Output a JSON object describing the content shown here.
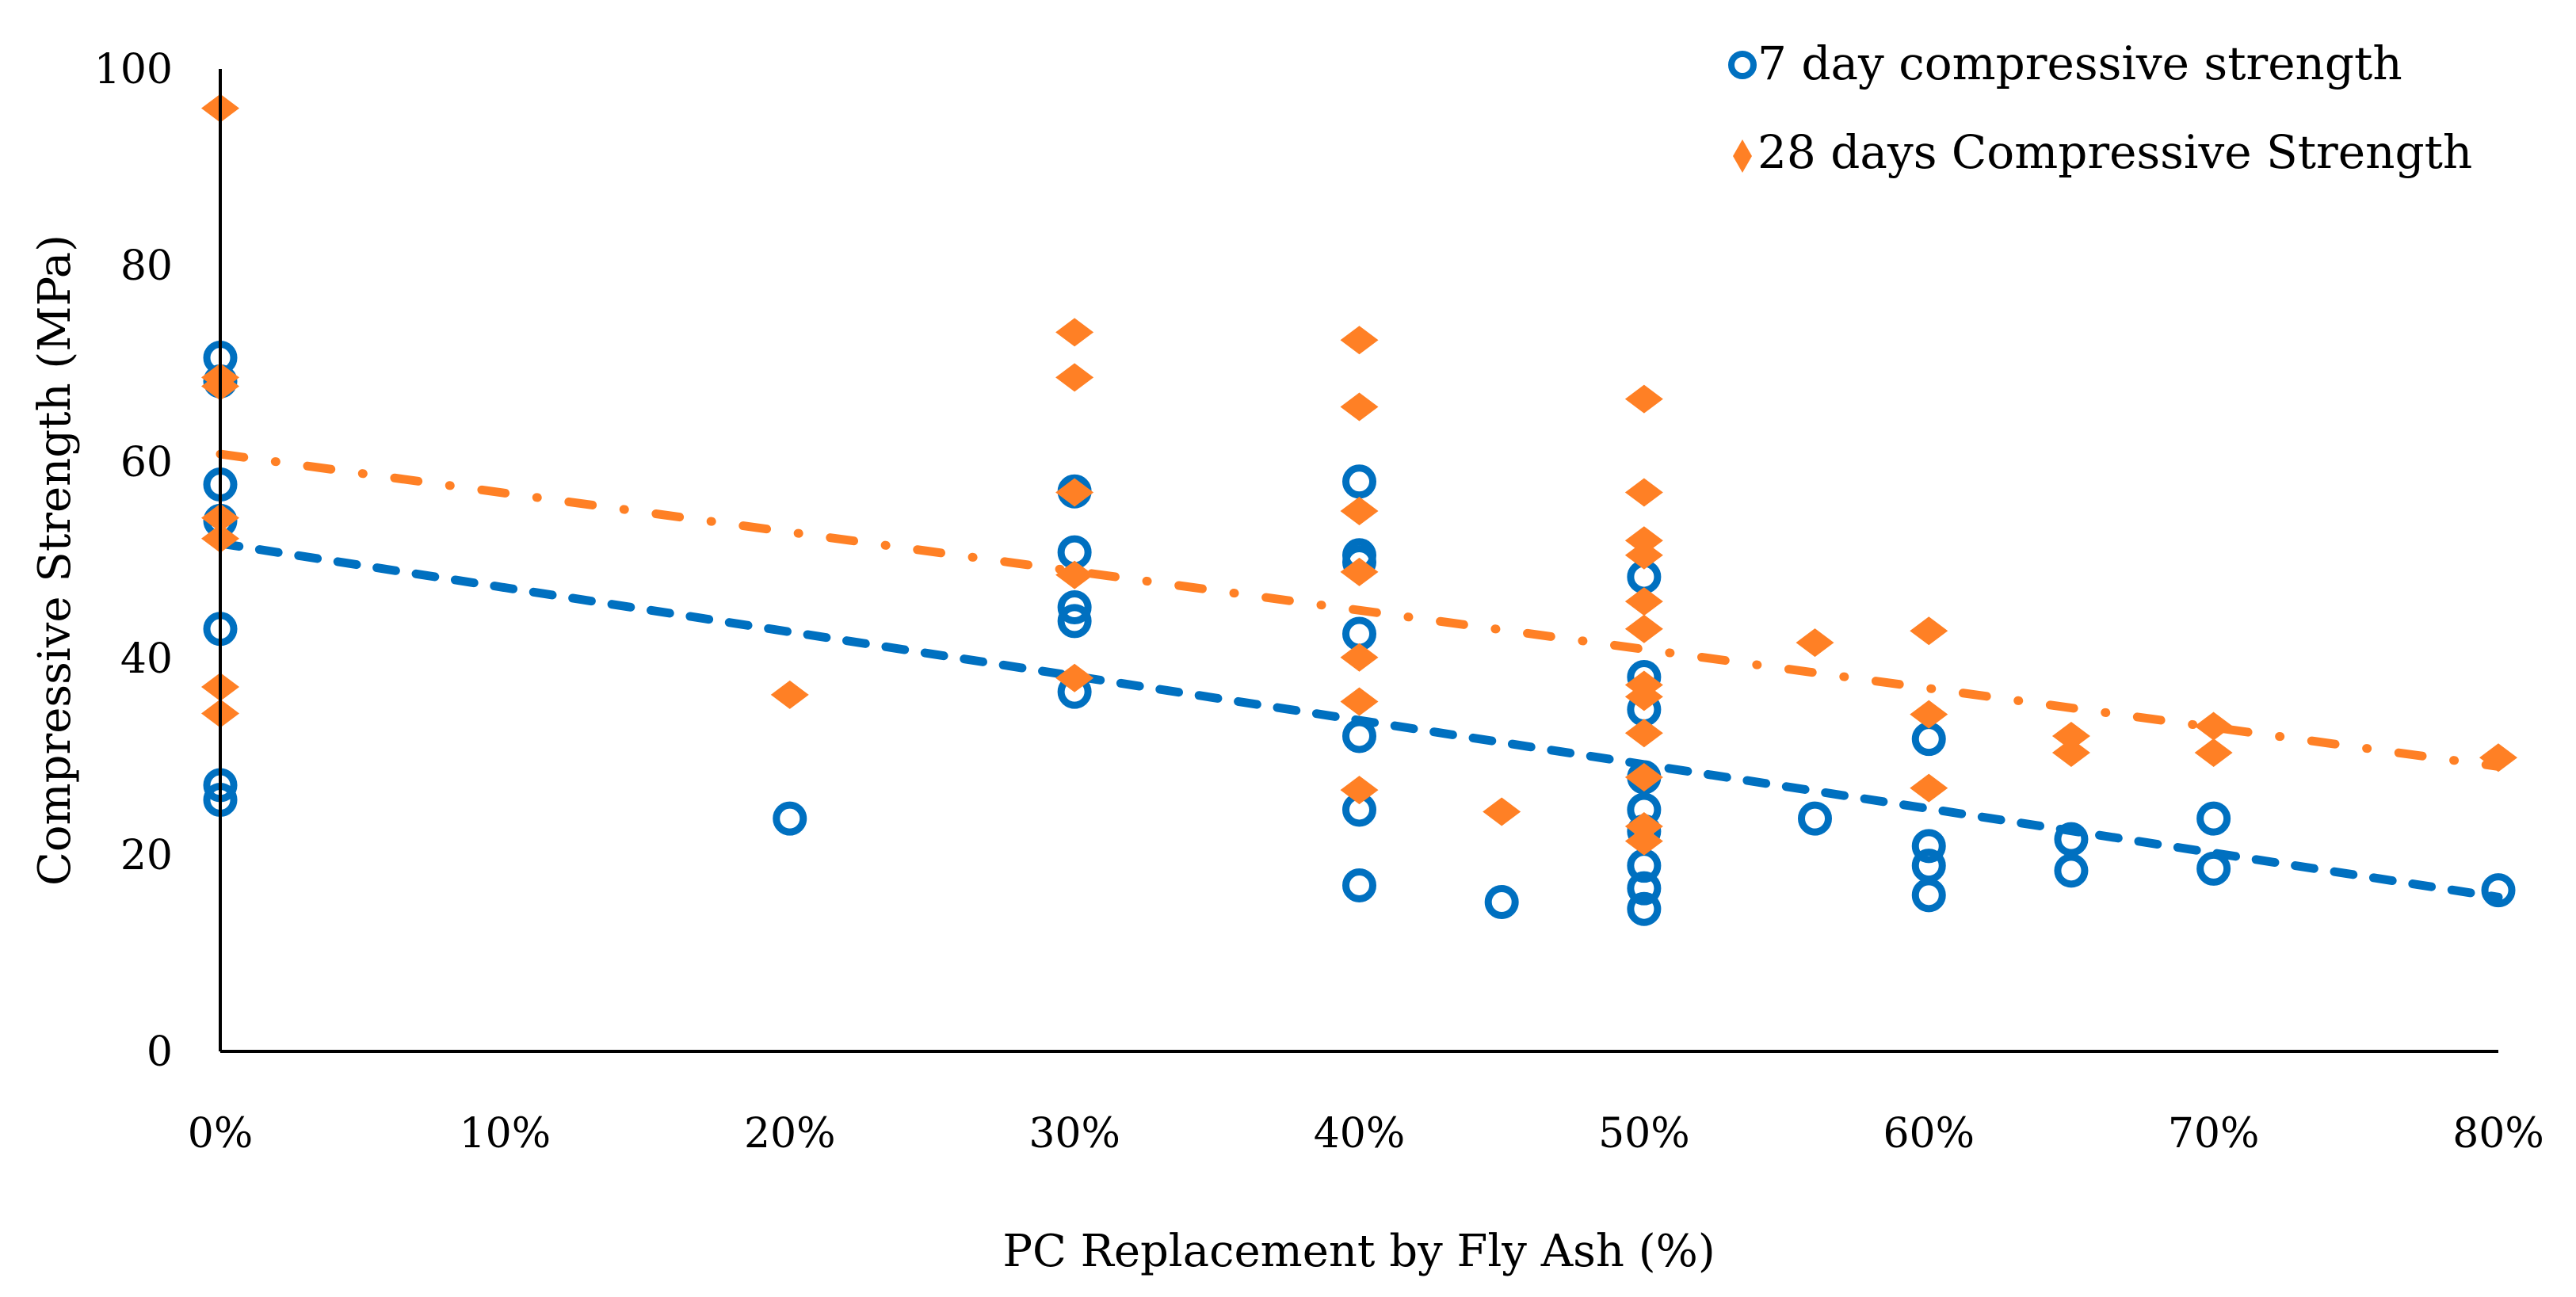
{
  "chart_data": {
    "type": "scatter",
    "title": "",
    "xlabel": "PC Replacement by Fly Ash (%)",
    "ylabel": "Compressive Strength (MPa)",
    "xlim": [
      0,
      80
    ],
    "ylim": [
      0,
      100
    ],
    "x_ticks": [
      "0%",
      "10%",
      "20%",
      "30%",
      "40%",
      "50%",
      "60%",
      "70%",
      "80%"
    ],
    "x_tick_values": [
      0,
      10,
      20,
      30,
      40,
      50,
      60,
      70,
      80
    ],
    "y_ticks": [
      "0",
      "20",
      "40",
      "60",
      "80",
      "100"
    ],
    "y_tick_values": [
      0,
      20,
      40,
      60,
      80,
      100
    ],
    "grid": false,
    "legend_position": "top-right",
    "series": [
      {
        "name": "7 day compressive strength",
        "marker": "circle-open",
        "color": "#0070C0",
        "points": [
          [
            0,
            70.6
          ],
          [
            0,
            68.2
          ],
          [
            0,
            57.7
          ],
          [
            0,
            54
          ],
          [
            0,
            43
          ],
          [
            0,
            27.1
          ],
          [
            0,
            25.6
          ],
          [
            20,
            23.7
          ],
          [
            30,
            57
          ],
          [
            30,
            50.8
          ],
          [
            30,
            45.2
          ],
          [
            30,
            43.8
          ],
          [
            30,
            36.6
          ],
          [
            40,
            58
          ],
          [
            40,
            50.5
          ],
          [
            40,
            49.8
          ],
          [
            40,
            42.5
          ],
          [
            40,
            32.1
          ],
          [
            40,
            24.6
          ],
          [
            40,
            16.9
          ],
          [
            45,
            15.2
          ],
          [
            50,
            48.3
          ],
          [
            50,
            38.1
          ],
          [
            50,
            34.8
          ],
          [
            50,
            27.9
          ],
          [
            50,
            24.6
          ],
          [
            50,
            22.4
          ],
          [
            50,
            18.9
          ],
          [
            50,
            16.6
          ],
          [
            50,
            14.5
          ],
          [
            56,
            23.7
          ],
          [
            60,
            31.8
          ],
          [
            60,
            20.9
          ],
          [
            60,
            18.9
          ],
          [
            60,
            15.9
          ],
          [
            65,
            21.6
          ],
          [
            65,
            18.4
          ],
          [
            70,
            23.7
          ],
          [
            70,
            18.6
          ],
          [
            80,
            16.4
          ]
        ],
        "trendline": {
          "style": "dashed",
          "start": [
            0,
            51.7
          ],
          "end": [
            80,
            15.7
          ]
        }
      },
      {
        "name": "28 days Compressive Strength",
        "marker": "diamond-filled",
        "color": "#FF8025",
        "points": [
          [
            0,
            96
          ],
          [
            0,
            68.6
          ],
          [
            0,
            67.7
          ],
          [
            0,
            54.3
          ],
          [
            0,
            52.2
          ],
          [
            0,
            37.1
          ],
          [
            0,
            34.4
          ],
          [
            20,
            36.3
          ],
          [
            30,
            73.2
          ],
          [
            30,
            68.6
          ],
          [
            30,
            56.9
          ],
          [
            30,
            48.5
          ],
          [
            30,
            38
          ],
          [
            40,
            72.4
          ],
          [
            40,
            65.6
          ],
          [
            40,
            55
          ],
          [
            40,
            48.8
          ],
          [
            40,
            40.1
          ],
          [
            40,
            35.6
          ],
          [
            40,
            26.6
          ],
          [
            45,
            24.4
          ],
          [
            50,
            66.4
          ],
          [
            50,
            56.9
          ],
          [
            50,
            52
          ],
          [
            50,
            50.5
          ],
          [
            50,
            45.8
          ],
          [
            50,
            43
          ],
          [
            50,
            37.3
          ],
          [
            50,
            36.1
          ],
          [
            50,
            32.4
          ],
          [
            50,
            27.9
          ],
          [
            50,
            22.9
          ],
          [
            50,
            21.4
          ],
          [
            56,
            41.6
          ],
          [
            60,
            42.8
          ],
          [
            60,
            34.3
          ],
          [
            60,
            26.8
          ],
          [
            65,
            32.1
          ],
          [
            65,
            30.4
          ],
          [
            70,
            33.1
          ],
          [
            70,
            30.4
          ],
          [
            80,
            29.9
          ]
        ],
        "trendline": {
          "style": "dash-dot",
          "start": [
            0,
            60.8
          ],
          "end": [
            80,
            29
          ]
        }
      }
    ]
  }
}
